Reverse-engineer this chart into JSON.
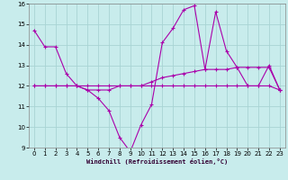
{
  "xlabel": "Windchill (Refroidissement éolien,°C)",
  "x_values": [
    0,
    1,
    2,
    3,
    4,
    5,
    6,
    7,
    8,
    9,
    10,
    11,
    12,
    13,
    14,
    15,
    16,
    17,
    18,
    19,
    20,
    21,
    22,
    23
  ],
  "y_actual": [
    14.7,
    13.9,
    13.9,
    12.6,
    12.0,
    11.8,
    11.4,
    10.8,
    9.5,
    8.8,
    10.1,
    11.1,
    14.1,
    14.8,
    15.7,
    15.9,
    12.8,
    15.6,
    13.7,
    12.9,
    12.0,
    12.0,
    13.0,
    11.8
  ],
  "y_trend": [
    12.0,
    12.0,
    12.0,
    12.0,
    12.0,
    11.8,
    11.8,
    11.8,
    12.0,
    12.0,
    12.0,
    12.2,
    12.4,
    12.5,
    12.6,
    12.7,
    12.8,
    12.8,
    12.8,
    12.9,
    12.9,
    12.9,
    12.9,
    11.8
  ],
  "y_flat": [
    12.0,
    12.0,
    12.0,
    12.0,
    12.0,
    12.0,
    12.0,
    12.0,
    12.0,
    12.0,
    12.0,
    12.0,
    12.0,
    12.0,
    12.0,
    12.0,
    12.0,
    12.0,
    12.0,
    12.0,
    12.0,
    12.0,
    12.0,
    11.8
  ],
  "line_color": "#aa00aa",
  "bg_color": "#c8ecec",
  "grid_color": "#a8d4d4",
  "ylim": [
    9,
    16
  ],
  "yticks": [
    9,
    10,
    11,
    12,
    13,
    14,
    15,
    16
  ],
  "xticks": [
    0,
    1,
    2,
    3,
    4,
    5,
    6,
    7,
    8,
    9,
    10,
    11,
    12,
    13,
    14,
    15,
    16,
    17,
    18,
    19,
    20,
    21,
    22,
    23
  ]
}
